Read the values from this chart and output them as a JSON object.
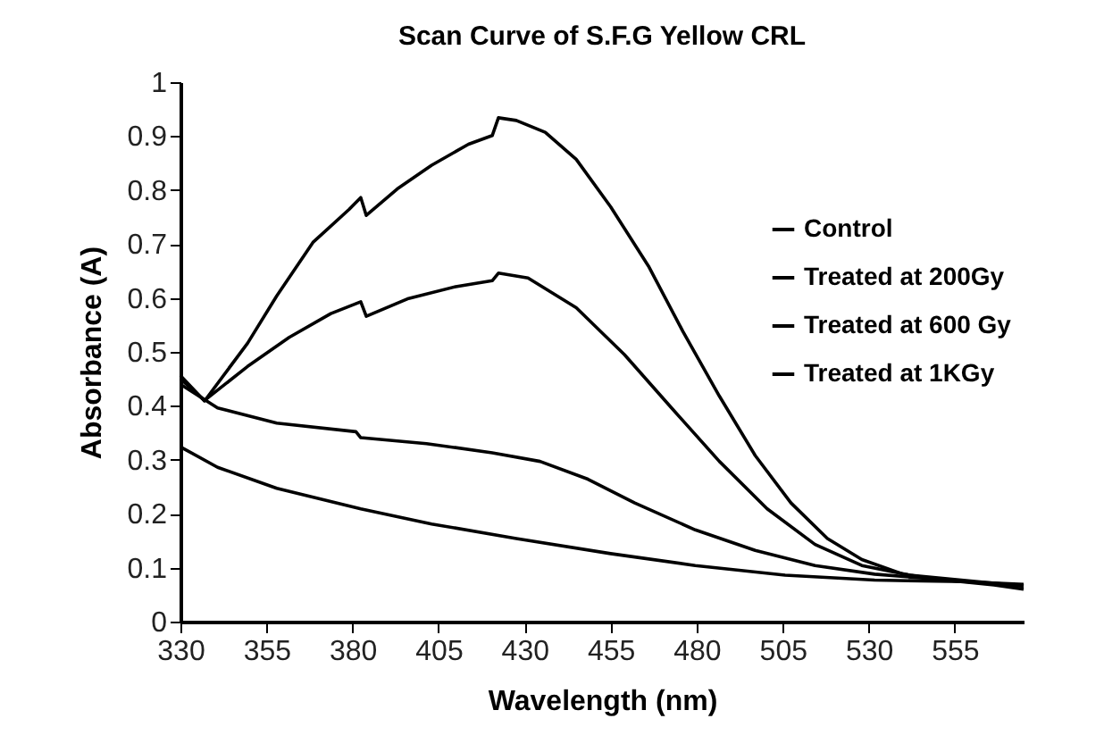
{
  "chart_data": {
    "type": "line",
    "title": "Scan Curve of S.F.G Yellow CRL",
    "xlabel": "Wavelength (nm)",
    "ylabel": "Absorbance (A)",
    "xlim": [
      330,
      575
    ],
    "xticks": [
      330,
      355,
      380,
      405,
      430,
      455,
      480,
      505,
      530,
      555
    ],
    "ylim": [
      0,
      1
    ],
    "yticks": [
      0,
      0.1,
      0.2,
      0.3,
      0.4,
      0.5,
      0.6,
      0.7,
      0.8,
      0.9,
      1
    ],
    "grid": false,
    "legend": "top right",
    "marker": "none",
    "line_style": "solid",
    "series": [
      {
        "name": "Control",
        "color": "#000000",
        "x": [
          330,
          337,
          349.5,
          358,
          368.5,
          379,
          382.4,
          384,
          393,
          403,
          413.7,
          420.6,
          422.4,
          427.6,
          436,
          445,
          455,
          466,
          476,
          486.6,
          497,
          507.4,
          518,
          528,
          540,
          549,
          566.4,
          575
        ],
        "values": [
          0.456,
          0.409,
          0.516,
          0.604,
          0.703,
          0.764,
          0.786,
          0.753,
          0.802,
          0.846,
          0.885,
          0.901,
          0.934,
          0.929,
          0.907,
          0.857,
          0.769,
          0.659,
          0.538,
          0.418,
          0.308,
          0.22,
          0.154,
          0.115,
          0.088,
          0.079,
          0.068,
          0.06
        ]
      },
      {
        "name": "Treated at 200Gy",
        "color": "#000000",
        "x": [
          330,
          337,
          349.5,
          361.6,
          373.7,
          382.4,
          384,
          396.3,
          410,
          420.6,
          422.4,
          431,
          445,
          459,
          472.7,
          486.6,
          500.5,
          514.4,
          528,
          542,
          566.4,
          575
        ],
        "values": [
          0.45,
          0.41,
          0.473,
          0.527,
          0.571,
          0.593,
          0.566,
          0.599,
          0.621,
          0.632,
          0.646,
          0.637,
          0.582,
          0.495,
          0.396,
          0.297,
          0.209,
          0.143,
          0.104,
          0.086,
          0.071,
          0.066
        ]
      },
      {
        "name": "Treated at 600 Gy",
        "color": "#000000",
        "x": [
          330,
          340.8,
          358,
          381,
          382.4,
          401.5,
          420.6,
          434.5,
          448.4,
          462,
          479.6,
          497,
          514.4,
          531.7,
          549,
          575
        ],
        "values": [
          0.44,
          0.396,
          0.368,
          0.352,
          0.341,
          0.33,
          0.313,
          0.297,
          0.264,
          0.22,
          0.17,
          0.132,
          0.104,
          0.088,
          0.079,
          0.066
        ]
      },
      {
        "name": "Treated at 1KGy",
        "color": "#000000",
        "x": [
          330,
          340.8,
          358,
          382.4,
          403,
          427.6,
          455,
          479.6,
          505.7,
          531.7,
          557.8,
          575
        ],
        "values": [
          0.324,
          0.286,
          0.247,
          0.209,
          0.181,
          0.154,
          0.126,
          0.104,
          0.086,
          0.077,
          0.074,
          0.069
        ]
      }
    ]
  }
}
